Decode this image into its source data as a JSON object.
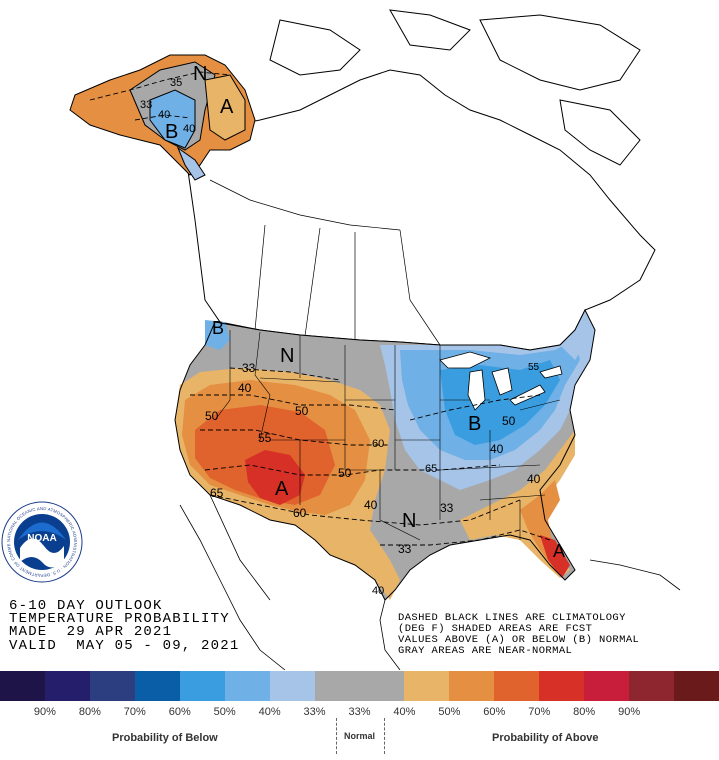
{
  "header": {
    "line1": "6-10 DAY OUTLOOK",
    "line2": "TEMPERATURE PROBABILITY",
    "line3": "MADE  29 APR 2021",
    "line4": "VALID  MAY 05 - 09, 2021"
  },
  "note": {
    "line1": "DASHED BLACK LINES ARE CLIMATOLOGY",
    "line2": "(DEG F) SHADED AREAS ARE FCST",
    "line3": "VALUES ABOVE (A) OR BELOW (B) NORMAL",
    "line4": "GRAY AREAS ARE NEAR-NORMAL"
  },
  "map_labels": {
    "A": "A",
    "B": "B",
    "N": "N",
    "v33": "33",
    "v35": "35",
    "v40": "40",
    "v50": "50",
    "v55": "55",
    "v60": "60",
    "v65": "65"
  },
  "legend": {
    "below_colors": [
      "#1e1447",
      "#251f6b",
      "#2c3d80",
      "#0a5ea8",
      "#3a9de0",
      "#6fb0e6",
      "#a5c4e8"
    ],
    "normal_color": "#a8a8a8",
    "above_colors": [
      "#e8b468",
      "#e58f42",
      "#e0622c",
      "#d73027",
      "#c81e3c",
      "#8e2630",
      "#6b1a1c"
    ],
    "tick_labels": [
      "90%",
      "80%",
      "70%",
      "60%",
      "50%",
      "40%",
      "33%",
      "33%",
      "40%",
      "50%",
      "60%",
      "70%",
      "80%",
      "90%"
    ],
    "below_title": "Probability of Below",
    "normal_title": "Normal",
    "above_title": "Probability of Above"
  },
  "noaa_logo": {
    "center_text": "NOAA",
    "ring_text": "NATIONAL OCEANIC AND ATMOSPHERIC ADMINISTRATION · U.S. DEPARTMENT OF COMMERCE"
  },
  "colors": {
    "below_light": "#a5c4e8",
    "below_mid": "#6fb0e6",
    "below_strong": "#3a9de0",
    "near_normal": "#a8a8a8",
    "above_light": "#e8b468",
    "above_mid": "#e58f42",
    "above_strong": "#e0622c",
    "above_max": "#d73027"
  }
}
